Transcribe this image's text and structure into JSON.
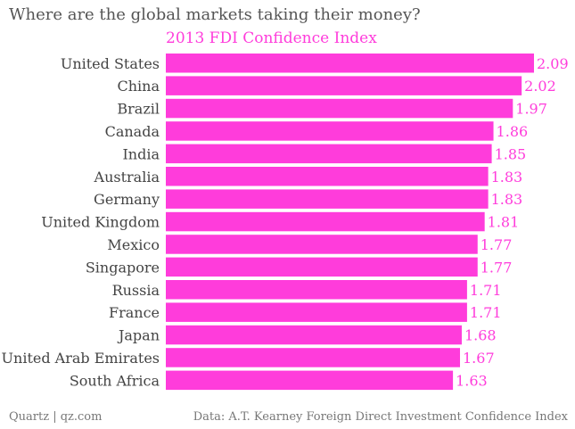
{
  "chart_data": {
    "type": "bar",
    "orientation": "horizontal",
    "title": "Where are the global markets taking their money?",
    "series_name": "2013 FDI Confidence Index",
    "categories": [
      "United States",
      "China",
      "Brazil",
      "Canada",
      "India",
      "Australia",
      "Germany",
      "United Kingdom",
      "Mexico",
      "Singapore",
      "Russia",
      "France",
      "Japan",
      "United Arab Emirates",
      "South Africa"
    ],
    "values": [
      2.09,
      2.02,
      1.97,
      1.86,
      1.85,
      1.83,
      1.83,
      1.81,
      1.77,
      1.77,
      1.71,
      1.71,
      1.68,
      1.67,
      1.63
    ],
    "value_labels": [
      "2.09",
      "2.02",
      "1.97",
      "1.86",
      "1.85",
      "1.83",
      "1.83",
      "1.81",
      "1.77",
      "1.77",
      "1.71",
      "1.71",
      "1.68",
      "1.67",
      "1.63"
    ],
    "xlim": [
      0,
      2.09
    ],
    "xlabel": "",
    "ylabel": "",
    "grid": false,
    "legend": "top-left"
  },
  "footer": {
    "source_left": "Quartz | qz.com",
    "source_right": "Data: A.T. Kearney Foreign Direct Investment Confidence Index"
  },
  "colors": {
    "bar": "#ff3cdb",
    "label_text": "#444444",
    "value_text": "#ff3cdb",
    "title_text": "#555555"
  }
}
